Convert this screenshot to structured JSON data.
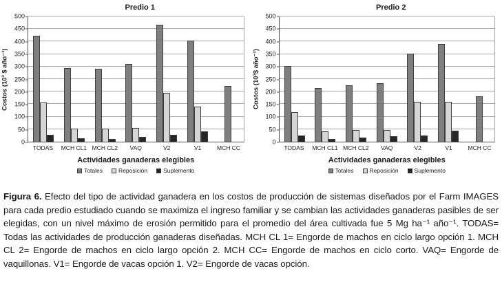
{
  "figure": {
    "caption_label": "Figura 6.",
    "caption_text": "  Efecto del tipo de actividad ganadera en los costos de producción de sistemas diseñados por el Farm IMAGES para cada predio estudiado cuando se maximiza el ingreso familiar y se cambian las actividades ganaderas pasibles de ser elegidas, con un nivel máximo de erosión permitido para el promedio del área cultivada fue 5 Mg ha⁻¹ año⁻¹. TODAS= Todas las actividades de producción ganaderas diseñadas. MCH CL 1= Engorde de machos  en ciclo largo opción 1.  MCH CL 2= Engorde de machos en ciclo largo opción 2. MCH CC= Engorde de machos en ciclo corto. VAQ= Engorde de vaquillonas. V1= Engorde de vacas opción 1. V2= Engorde de vacas opción."
  },
  "chart_data": [
    {
      "type": "bar",
      "title": "Predio 1",
      "xlabel": "Actividades ganaderas elegibles",
      "ylabel": "Costos (10³ $ año⁻¹)",
      "ylim": [
        0,
        500
      ],
      "ytick_step": 50,
      "grid": true,
      "legend_position": "bottom",
      "categories": [
        "TODAS",
        "MCH CL1",
        "MCH CL2",
        "VAQ",
        "V2",
        "V1",
        "MCH CC"
      ],
      "series": [
        {
          "name": "Totales",
          "color": "#7f7f7f",
          "values": [
            422,
            295,
            292,
            310,
            466,
            404,
            222
          ]
        },
        {
          "name": "Reposición",
          "color": "#d6d6d6",
          "values": [
            158,
            51,
            51,
            55,
            194,
            139,
            0
          ]
        },
        {
          "name": "Suplemento",
          "color": "#262626",
          "values": [
            27,
            14,
            11,
            19,
            28,
            40,
            0
          ]
        }
      ]
    },
    {
      "type": "bar",
      "title": "Predio 2",
      "xlabel": "Actividades ganaderas elegibles",
      "ylabel": "Costos (10³$ año⁻¹)",
      "ylim": [
        0,
        500
      ],
      "ytick_step": 50,
      "grid": true,
      "legend_position": "bottom",
      "categories": [
        "TODAS",
        "MCH CL1",
        "MCH CL2",
        "VAQ",
        "V2",
        "V1",
        "MCH CC"
      ],
      "series": [
        {
          "name": "Totales",
          "color": "#7f7f7f",
          "values": [
            303,
            215,
            224,
            234,
            353,
            390,
            180
          ]
        },
        {
          "name": "Reposición",
          "color": "#d6d6d6",
          "values": [
            117,
            42,
            47,
            48,
            160,
            160,
            0
          ]
        },
        {
          "name": "Suplemento",
          "color": "#262626",
          "values": [
            24,
            10,
            16,
            22,
            25,
            44,
            0
          ]
        }
      ]
    }
  ],
  "colors": {
    "axis": "#4d4d4d",
    "gridline": "#a8a8a8",
    "text": "#1a1a1a"
  }
}
